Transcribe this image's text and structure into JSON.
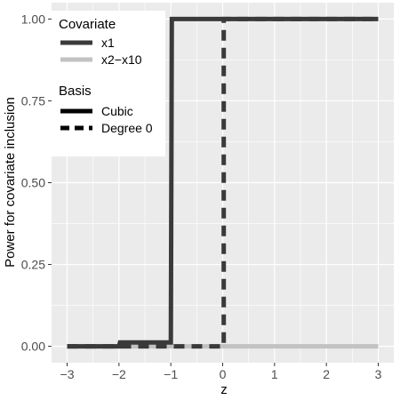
{
  "chart_data": {
    "type": "line",
    "xlabel": "z",
    "ylabel": "Power for covariate inclusion",
    "xlim": [
      -3.3,
      3.3
    ],
    "ylim": [
      -0.05,
      1.05
    ],
    "x_ticks": [
      -3,
      -2,
      -1,
      0,
      1,
      2,
      3
    ],
    "x_tick_labels": [
      "−3",
      "−2",
      "−1",
      "0",
      "1",
      "2",
      "3"
    ],
    "y_ticks": [
      0,
      0.25,
      0.5,
      0.75,
      1
    ],
    "y_tick_labels": [
      "0.00",
      "0.25",
      "0.50",
      "0.75",
      "1.00"
    ],
    "grid": true,
    "background": "#ebebeb",
    "series": [
      {
        "name": "x1",
        "basis": "Cubic",
        "color": "#3a3a3a",
        "dash": "solid",
        "x": [
          -3,
          -2,
          -1.98,
          -1,
          -0.98,
          3
        ],
        "y": [
          0,
          0,
          0.012,
          0.012,
          1,
          1
        ]
      },
      {
        "name": "x1",
        "basis": "Degree 0",
        "color": "#3a3a3a",
        "dash": "dashed",
        "x": [
          -3,
          0.02,
          0.02,
          3
        ],
        "y": [
          0,
          0,
          1,
          1
        ]
      },
      {
        "name": "x2−x10",
        "basis": "Cubic",
        "color": "#c2c2c2",
        "dash": "solid",
        "x": [
          -3,
          3
        ],
        "y": [
          0,
          0
        ]
      },
      {
        "name": "x2−x10",
        "basis": "Degree 0",
        "color": "#c2c2c2",
        "dash": "dashed",
        "x": [
          -3,
          0
        ],
        "y": [
          0,
          0
        ]
      }
    ],
    "legend": {
      "placement": "top-left",
      "covariate": {
        "title": "Covariate",
        "entries": [
          {
            "label": "x1",
            "color": "#3a3a3a"
          },
          {
            "label": "x2−x10",
            "color": "#c2c2c2"
          }
        ]
      },
      "basis": {
        "title": "Basis",
        "entries": [
          {
            "label": "Cubic",
            "dash": "solid",
            "color": "#000000"
          },
          {
            "label": "Degree 0",
            "dash": "dashed",
            "color": "#000000"
          }
        ]
      }
    }
  }
}
